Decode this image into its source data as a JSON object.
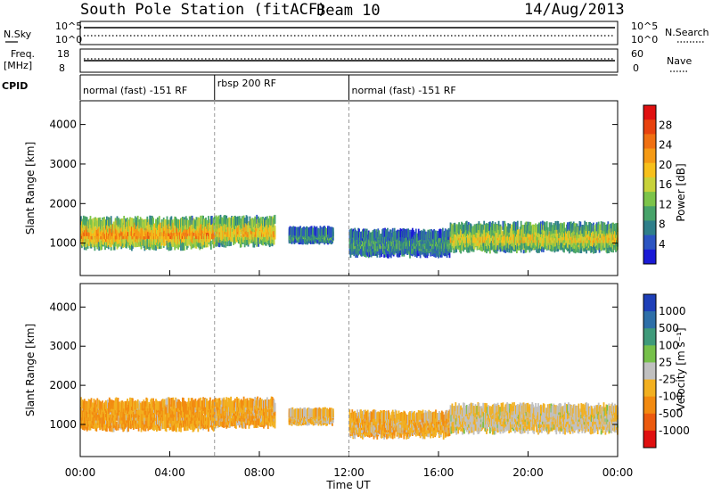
{
  "header": {
    "station": "South Pole Station (fitACF)",
    "beam": "Beam 10",
    "date": "14/Aug/2013"
  },
  "strips": {
    "nsky_label": "N.Sky",
    "nsearch_label": "N.Search",
    "freq_label": "Freq.",
    "freq_unit": "[MHz]",
    "nave_label": "Nave",
    "cpid_label": "CPID",
    "nsky_ticks": [
      "10^5",
      "10^0"
    ],
    "nsearch_ticks": [
      "10^5",
      "10^0"
    ],
    "freq_ticks": [
      "18",
      "8"
    ],
    "nave_ticks": [
      "60",
      "0"
    ]
  },
  "cpid_segments": [
    {
      "label": "normal (fast) -151 RF",
      "start_hour": 0,
      "end_hour": 6
    },
    {
      "label": "rbsp 200 RF",
      "start_hour": 6,
      "end_hour": 12
    },
    {
      "label": "normal (fast) -151 RF",
      "start_hour": 12,
      "end_hour": 24
    }
  ],
  "chart_data": [
    {
      "type": "heatmap",
      "title": "",
      "xlabel": "Time UT",
      "ylabel": "Slant Range [km]",
      "xlim": [
        0,
        24
      ],
      "ylim": [
        180,
        4600
      ],
      "x_ticks": [
        "00:00",
        "04:00",
        "08:00",
        "12:00",
        "16:00",
        "20:00",
        "00:00"
      ],
      "y_ticks": [
        "1000",
        "2000",
        "3000",
        "4000"
      ],
      "colorbar": {
        "label": "Power [dB]",
        "ticks": [
          "4",
          "8",
          "12",
          "16",
          "20",
          "24",
          "28"
        ],
        "range": [
          0,
          30
        ],
        "colors": [
          "#1a1ad6",
          "#2c55c2",
          "#2f7f8a",
          "#47a36a",
          "#7cc44a",
          "#c8d23a",
          "#f7c01b",
          "#f59a15",
          "#f07012",
          "#e8420e",
          "#e01010"
        ]
      },
      "echo_bands": [
        {
          "start_hour": 0.0,
          "end_hour": 6.0,
          "center_km": 1250,
          "width_km": 420,
          "level": 0.78
        },
        {
          "start_hour": 6.0,
          "end_hour": 8.7,
          "center_km": 1300,
          "width_km": 380,
          "level": 0.7
        },
        {
          "start_hour": 9.3,
          "end_hour": 11.3,
          "center_km": 1200,
          "width_km": 160,
          "level": 0.3
        },
        {
          "start_hour": 12.0,
          "end_hour": 16.5,
          "center_km": 1000,
          "width_km": 340,
          "level": 0.3
        },
        {
          "start_hour": 16.5,
          "end_hour": 24.0,
          "center_km": 1150,
          "width_km": 380,
          "level": 0.6
        }
      ]
    },
    {
      "type": "heatmap",
      "title": "",
      "xlabel": "Time UT",
      "ylabel": "Slant Range [km]",
      "xlim": [
        0,
        24
      ],
      "ylim": [
        180,
        4600
      ],
      "x_ticks": [
        "00:00",
        "04:00",
        "08:00",
        "12:00",
        "16:00",
        "20:00",
        "00:00"
      ],
      "y_ticks": [
        "1000",
        "2000",
        "3000",
        "4000"
      ],
      "colorbar": {
        "label": "Velocity [m s⁻¹]",
        "ticks": [
          "1000",
          "500",
          "100",
          "25",
          "-25",
          "-100",
          "-500",
          "-1000"
        ],
        "range": [
          -1000,
          1000
        ],
        "colors": [
          "#1e3fb8",
          "#2e6fa8",
          "#3f9a7a",
          "#76c04a",
          "#c0c0c0",
          "#f2b020",
          "#f28a10",
          "#ec5a0e",
          "#e01010"
        ]
      },
      "echo_bands": [
        {
          "start_hour": 0.0,
          "end_hour": 6.0,
          "center_km": 1250,
          "width_km": 420,
          "level": -0.35
        },
        {
          "start_hour": 6.0,
          "end_hour": 8.7,
          "center_km": 1300,
          "width_km": 380,
          "level": -0.3
        },
        {
          "start_hour": 9.3,
          "end_hour": 11.3,
          "center_km": 1200,
          "width_km": 160,
          "level": -0.2
        },
        {
          "start_hour": 12.0,
          "end_hour": 16.5,
          "center_km": 1000,
          "width_km": 340,
          "level": -0.25
        },
        {
          "start_hour": 16.5,
          "end_hour": 24.0,
          "center_km": 1150,
          "width_km": 380,
          "level": -0.1
        }
      ]
    }
  ]
}
